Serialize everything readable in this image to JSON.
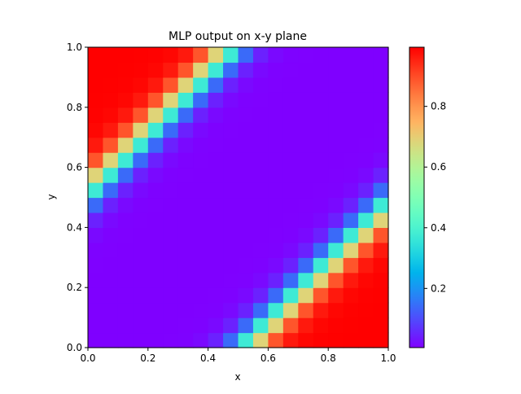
{
  "chart_data": {
    "type": "heatmap",
    "title": "MLP output on x-y plane",
    "xlabel": "x",
    "ylabel": "y",
    "xlim": [
      0,
      1
    ],
    "ylim": [
      0,
      1
    ],
    "x_ticks": [
      "0.0",
      "0.2",
      "0.4",
      "0.6",
      "0.8",
      "1.0"
    ],
    "y_ticks": [
      "0.0",
      "0.2",
      "0.4",
      "0.6",
      "0.8",
      "1.0"
    ],
    "grid": false,
    "colormap": "rainbow",
    "colorbar": {
      "range": [
        0.005,
        0.995
      ],
      "ticks": [
        "0.2",
        "0.4",
        "0.6",
        "0.8"
      ],
      "tick_values": [
        0.2,
        0.4,
        0.6,
        0.8
      ]
    },
    "grid_size": [
      20,
      20
    ],
    "model": {
      "description": "output rises where |x - y| exceeds ~0.5 (upper-left and lower-right corners)",
      "center": 0.52,
      "sharpness": 0.038
    }
  }
}
